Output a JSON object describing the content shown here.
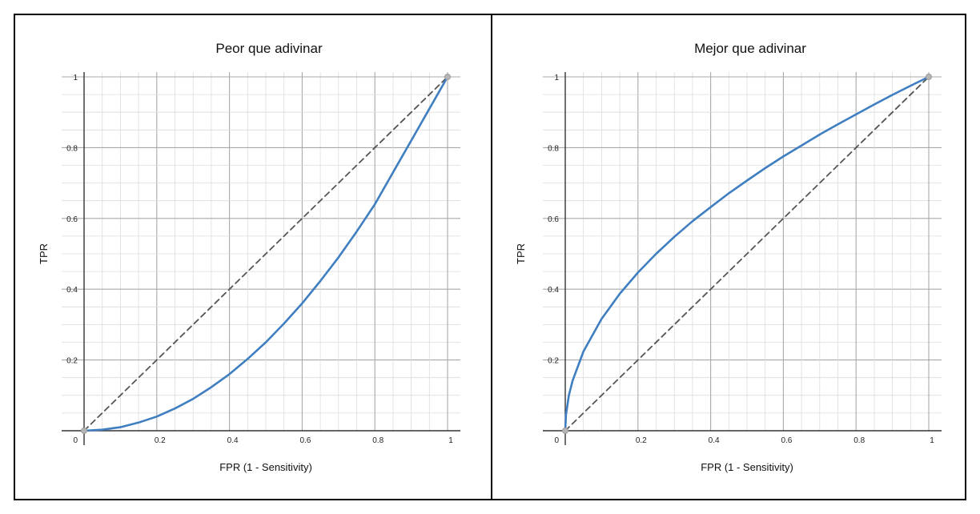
{
  "chart_data": [
    {
      "type": "line",
      "title": "Peor que adivinar",
      "xlabel": "FPR (1 - Sensitivity)",
      "ylabel": "TPR",
      "xlim": [
        0,
        1
      ],
      "ylim": [
        0,
        1
      ],
      "x_ticks": [
        "0",
        "0.2",
        "0.4",
        "0.6",
        "0.8",
        "1"
      ],
      "y_ticks": [
        "0.2",
        "0.4",
        "0.6",
        "0.8",
        "1"
      ],
      "grid": true,
      "series": [
        {
          "style": "solid",
          "color": "#3f7fc1",
          "x": [
            0,
            0.05,
            0.1,
            0.15,
            0.2,
            0.25,
            0.3,
            0.35,
            0.4,
            0.45,
            0.5,
            0.55,
            0.6,
            0.65,
            0.7,
            0.75,
            0.8,
            0.85,
            0.9,
            0.95,
            1
          ],
          "y": [
            0,
            0.003,
            0.01,
            0.023,
            0.04,
            0.063,
            0.09,
            0.123,
            0.16,
            0.203,
            0.25,
            0.303,
            0.36,
            0.423,
            0.49,
            0.563,
            0.64,
            0.73,
            0.82,
            0.91,
            1
          ]
        },
        {
          "style": "dashed",
          "color": "#555555",
          "x": [
            0,
            1
          ],
          "y": [
            0,
            1
          ]
        }
      ]
    },
    {
      "type": "line",
      "title": "Mejor que adivinar",
      "xlabel": "FPR (1 - Sensitivity)",
      "ylabel": "TPR",
      "xlim": [
        0,
        1
      ],
      "ylim": [
        0,
        1
      ],
      "x_ticks": [
        "0",
        "0.2",
        "0.4",
        "0.6",
        "0.8",
        "1"
      ],
      "y_ticks": [
        "0.2",
        "0.4",
        "0.6",
        "0.8",
        "1"
      ],
      "grid": true,
      "series": [
        {
          "style": "solid",
          "color": "#3f7fc1",
          "x": [
            0,
            0.002,
            0.01,
            0.02,
            0.05,
            0.1,
            0.15,
            0.2,
            0.25,
            0.3,
            0.35,
            0.4,
            0.45,
            0.5,
            0.55,
            0.6,
            0.65,
            0.7,
            0.75,
            0.8,
            0.85,
            0.9,
            0.95,
            1
          ],
          "y": [
            0,
            0.045,
            0.1,
            0.141,
            0.224,
            0.316,
            0.387,
            0.447,
            0.5,
            0.548,
            0.592,
            0.632,
            0.671,
            0.707,
            0.742,
            0.775,
            0.806,
            0.837,
            0.866,
            0.894,
            0.922,
            0.949,
            0.975,
            1
          ]
        },
        {
          "style": "dashed",
          "color": "#555555",
          "x": [
            0,
            1
          ],
          "y": [
            0,
            1
          ]
        }
      ]
    }
  ]
}
